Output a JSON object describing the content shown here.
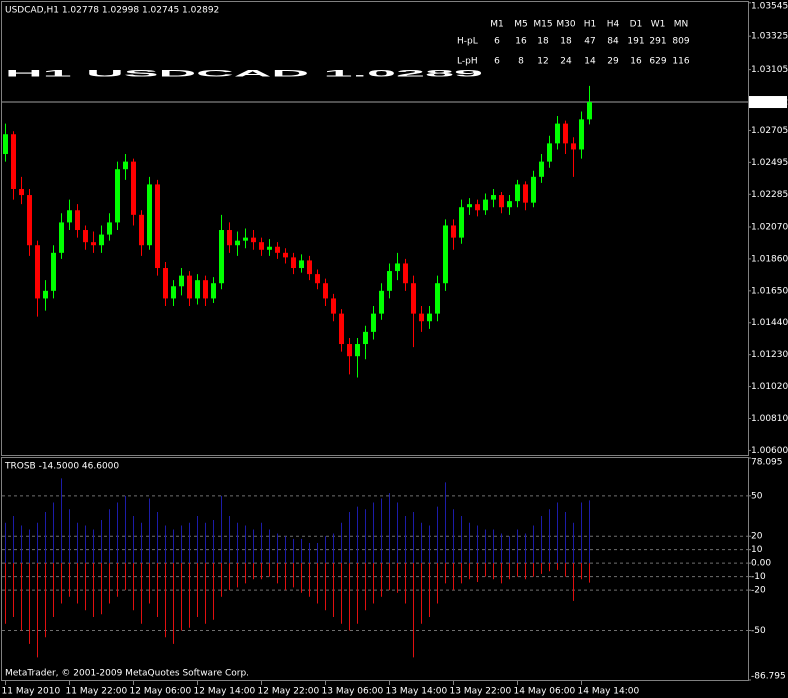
{
  "chart_data": [
    {
      "type": "candlestick",
      "title": "USDCAD,H1  1.02778 1.02998 1.02745 1.02892",
      "annotation": "H1 USDCAD 1.0289",
      "up_color": "#00ff00",
      "down_color": "#ff0000",
      "annotation_color": "#ff0000",
      "grid": false,
      "categories": [
        "11 May 2010",
        null,
        null,
        null,
        null,
        null,
        null,
        null,
        "11 May 22:00",
        null,
        null,
        null,
        null,
        null,
        null,
        null,
        "12 May 06:00",
        null,
        null,
        null,
        null,
        null,
        null,
        null,
        "12 May 14:00",
        null,
        null,
        null,
        null,
        null,
        null,
        null,
        "12 May 22:00",
        null,
        null,
        null,
        null,
        null,
        null,
        null,
        "13 May 06:00",
        null,
        null,
        null,
        null,
        null,
        null,
        null,
        "13 May 14:00",
        null,
        null,
        null,
        null,
        null,
        null,
        null,
        "13 May 22:00",
        null,
        null,
        null,
        null,
        null,
        null,
        null,
        "14 May 06:00",
        null,
        null,
        null,
        null,
        null,
        null,
        null,
        "14 May 14:00",
        null
      ],
      "open": [
        1.0255,
        1.0268,
        1.0232,
        1.0228,
        1.0195,
        1.016,
        1.0165,
        1.019,
        1.021,
        1.0218,
        1.0205,
        1.0197,
        1.0195,
        1.0202,
        1.021,
        1.0245,
        1.025,
        1.0215,
        1.0195,
        1.0235,
        1.018,
        1.016,
        1.0168,
        1.0175,
        1.016,
        1.0172,
        1.016,
        1.017,
        1.0205,
        1.0195,
        1.0198,
        1.02,
        1.0197,
        1.0192,
        1.0194,
        1.019,
        1.0187,
        1.018,
        1.0185,
        1.0176,
        1.017,
        1.016,
        1.015,
        1.013,
        1.0122,
        1.013,
        1.0138,
        1.015,
        1.0165,
        1.0178,
        1.0183,
        1.017,
        1.015,
        1.0145,
        1.015,
        1.017,
        1.0208,
        1.02,
        1.022,
        1.0222,
        1.0218,
        1.0225,
        1.0228,
        1.022,
        1.0224,
        1.0235,
        1.0223,
        1.024,
        1.025,
        1.0262,
        1.0275,
        1.0262,
        1.0258,
        1.02778
      ],
      "high": [
        1.0275,
        1.027,
        1.024,
        1.0232,
        1.0198,
        1.0172,
        1.0195,
        1.0216,
        1.0225,
        1.0222,
        1.0208,
        1.0204,
        1.0208,
        1.0216,
        1.025,
        1.0255,
        1.0252,
        1.0218,
        1.024,
        1.0238,
        1.0184,
        1.0172,
        1.018,
        1.0178,
        1.0176,
        1.0175,
        1.0174,
        1.0215,
        1.021,
        1.0204,
        1.0206,
        1.0205,
        1.02,
        1.0199,
        1.0197,
        1.0193,
        1.019,
        1.0189,
        1.0188,
        1.0179,
        1.0173,
        1.0163,
        1.0153,
        1.0134,
        1.0134,
        1.0142,
        1.0155,
        1.017,
        1.0183,
        1.019,
        1.0186,
        1.0175,
        1.0155,
        1.0155,
        1.0175,
        1.0212,
        1.0212,
        1.0225,
        1.0226,
        1.0225,
        1.0229,
        1.0232,
        1.023,
        1.0228,
        1.0238,
        1.0237,
        1.0244,
        1.0255,
        1.0267,
        1.028,
        1.0277,
        1.0266,
        1.0283,
        1.02998
      ],
      "low": [
        1.025,
        1.0225,
        1.0222,
        1.0188,
        1.0148,
        1.0152,
        1.016,
        1.0186,
        1.0205,
        1.02,
        1.0192,
        1.019,
        1.019,
        1.0198,
        1.0205,
        1.0238,
        1.0208,
        1.0188,
        1.0192,
        1.0175,
        1.0155,
        1.0155,
        1.0162,
        1.0155,
        1.0156,
        1.0155,
        1.0157,
        1.0166,
        1.019,
        1.0188,
        1.0193,
        1.0192,
        1.0188,
        1.0188,
        1.0186,
        1.0183,
        1.0176,
        1.0177,
        1.0172,
        1.0166,
        1.0155,
        1.0145,
        1.0125,
        1.011,
        1.0108,
        1.012,
        1.0133,
        1.0146,
        1.016,
        1.0172,
        1.0165,
        1.0128,
        1.0138,
        1.014,
        1.0145,
        1.0165,
        1.0192,
        1.0196,
        1.0215,
        1.0214,
        1.0215,
        1.022,
        1.0216,
        1.0215,
        1.022,
        1.0218,
        1.022,
        1.0236,
        1.0246,
        1.0258,
        1.0255,
        1.024,
        1.0252,
        1.02745
      ],
      "close": [
        1.0268,
        1.0232,
        1.0228,
        1.0195,
        1.016,
        1.0165,
        1.019,
        1.021,
        1.0218,
        1.0205,
        1.0197,
        1.0195,
        1.0202,
        1.021,
        1.0245,
        1.025,
        1.0215,
        1.0195,
        1.0235,
        1.018,
        1.016,
        1.0168,
        1.0175,
        1.016,
        1.0172,
        1.016,
        1.017,
        1.0205,
        1.0195,
        1.0198,
        1.02,
        1.0197,
        1.0192,
        1.0194,
        1.019,
        1.0187,
        1.018,
        1.0185,
        1.0176,
        1.017,
        1.016,
        1.015,
        1.013,
        1.0122,
        1.013,
        1.0138,
        1.015,
        1.0165,
        1.0178,
        1.0183,
        1.017,
        1.015,
        1.0145,
        1.015,
        1.017,
        1.0208,
        1.02,
        1.022,
        1.0222,
        1.0218,
        1.0225,
        1.0228,
        1.022,
        1.0224,
        1.0235,
        1.0223,
        1.024,
        1.025,
        1.0262,
        1.0275,
        1.0262,
        1.0258,
        1.02778,
        1.02892
      ],
      "price_line": 1.02892,
      "ylim": [
        1.0057,
        1.0355
      ],
      "yticks": [
        1.03545,
        1.03325,
        1.03105,
        1.02705,
        1.02495,
        1.02285,
        {
          "value": 1.0207,
          "label": "1.02070"
        },
        {
          "value": 1.0186,
          "label": "1.01860"
        },
        {
          "value": 1.0165,
          "label": "1.01650"
        },
        {
          "value": 1.0144,
          "label": "1.01440"
        },
        {
          "value": 1.0123,
          "label": "1.01230"
        },
        {
          "value": 1.0102,
          "label": "1.01020"
        },
        {
          "value": 1.0081,
          "label": "1.00810"
        },
        {
          "value": 1.006,
          "label": "1.00600"
        }
      ]
    },
    {
      "type": "bar",
      "title": "TROSB -14.5000 46.6000",
      "grid": true,
      "series": [
        {
          "color": "#1c1ca8",
          "values": [
            30,
            35,
            28,
            25,
            30,
            38,
            45,
            63,
            40,
            30,
            28,
            25,
            32,
            40,
            45,
            50,
            35,
            30,
            48,
            38,
            28,
            25,
            28,
            30,
            35,
            30,
            32,
            50,
            35,
            30,
            28,
            25,
            30,
            25,
            22,
            20,
            18,
            18,
            15,
            15,
            20,
            22,
            30,
            38,
            42,
            40,
            45,
            48,
            52,
            45,
            35,
            38,
            30,
            28,
            42,
            60,
            40,
            35,
            30,
            28,
            25,
            25,
            22,
            20,
            25,
            22,
            28,
            35,
            40,
            45,
            38,
            30,
            45,
            46.6
          ]
        },
        {
          "color": "#e01010",
          "values": [
            -45,
            -40,
            -50,
            -60,
            -70,
            -55,
            -40,
            -30,
            -25,
            -30,
            -35,
            -40,
            -38,
            -30,
            -25,
            -20,
            -35,
            -45,
            -30,
            -40,
            -55,
            -60,
            -50,
            -48,
            -40,
            -45,
            -42,
            -25,
            -20,
            -18,
            -15,
            -12,
            -12,
            -10,
            -15,
            -20,
            -18,
            -22,
            -25,
            -30,
            -35,
            -40,
            -45,
            -50,
            -45,
            -35,
            -30,
            -25,
            -20,
            -22,
            -30,
            -70,
            -45,
            -40,
            -30,
            -15,
            -20,
            -15,
            -12,
            -14,
            -10,
            -12,
            -15,
            -12,
            -10,
            -12,
            -10,
            -8,
            -6,
            -5,
            -10,
            -28,
            -12,
            -14.5
          ]
        }
      ],
      "ylim": [
        -86.795,
        78.095
      ],
      "yticks": [
        78.095,
        50,
        20,
        10,
        {
          "value": 0,
          "label": "0.00"
        },
        -10,
        -20,
        -50,
        -86.795
      ]
    }
  ],
  "levels_table": {
    "columns": [
      "M1",
      "M5",
      "M15",
      "M30",
      "H1",
      "H4",
      "D1",
      "W1",
      "MN"
    ],
    "highlight_index": 4,
    "header_color": "#4b8cff",
    "highlight_color": "#ff30ff",
    "rows": [
      {
        "label": "H-pL",
        "color": "#40ff40",
        "values": [
          6,
          16,
          18,
          18,
          47,
          84,
          191,
          291,
          809
        ]
      },
      {
        "label": "L-pH",
        "color": "#ff3030",
        "values": [
          6,
          8,
          12,
          24,
          14,
          29,
          16,
          629,
          116
        ]
      }
    ]
  },
  "footer": "MetaTrader, © 2001-2009 MetaQuotes Software Corp."
}
